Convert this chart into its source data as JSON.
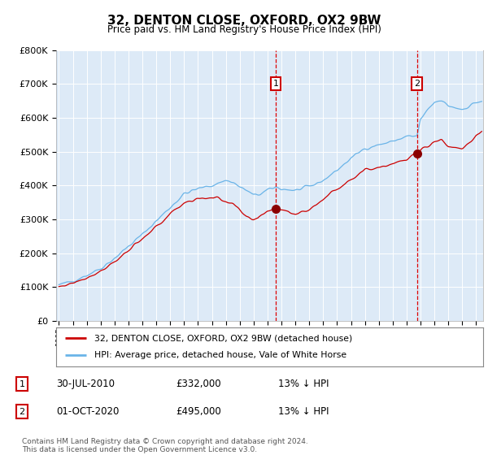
{
  "title": "32, DENTON CLOSE, OXFORD, OX2 9BW",
  "subtitle": "Price paid vs. HM Land Registry's House Price Index (HPI)",
  "bg_color": "#ddeaf7",
  "fig_bg": "#ffffff",
  "red_label": "32, DENTON CLOSE, OXFORD, OX2 9BW (detached house)",
  "blue_label": "HPI: Average price, detached house, Vale of White Horse",
  "footer": "Contains HM Land Registry data © Crown copyright and database right 2024.\nThis data is licensed under the Open Government Licence v3.0.",
  "transactions": [
    {
      "num": "1",
      "date": "30-JUL-2010",
      "price": "£332,000",
      "note": "13% ↓ HPI"
    },
    {
      "num": "2",
      "date": "01-OCT-2020",
      "price": "£495,000",
      "note": "13% ↓ HPI"
    }
  ],
  "marker1_year": 2010.58,
  "marker1_price": 332000,
  "marker2_year": 2020.75,
  "marker2_price": 495000,
  "ylim": [
    0,
    800000
  ],
  "xlim_start": 1994.8,
  "xlim_end": 2025.5,
  "red_color": "#cc0000",
  "blue_color": "#6ab4e8",
  "marker_dot_color": "#8b0000",
  "grid_color": "#ffffff",
  "vline_color": "#dd0000",
  "box_edge_color": "#cc0000"
}
